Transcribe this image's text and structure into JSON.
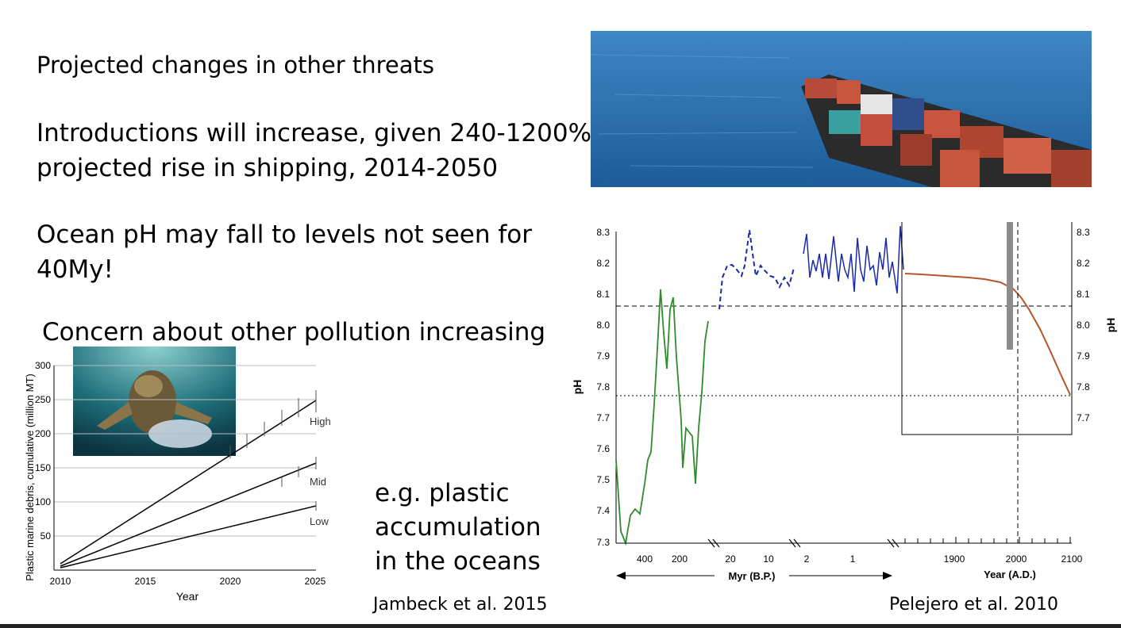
{
  "slide": {
    "title": "Projected changes in other threats",
    "para1": [
      "Introductions will increase, given 240-1200%",
      "projected rise in shipping, 2014-2050"
    ],
    "para2": [
      "Ocean pH may fall to levels not seen for",
      "40My!"
    ],
    "para3": "Concern about other pollution increasing",
    "example": [
      "e.g. plastic",
      "accumulation",
      "in the oceans"
    ],
    "cite_left": "Jambeck et al. 2015",
    "cite_right": "Pelejero et al. 2010"
  },
  "plastic_chart": {
    "ylabel": "Plastic marine debris, cumulative (million MT)",
    "xlabel": "Year",
    "yticks": [
      "300",
      "250",
      "200",
      "150",
      "100",
      "50"
    ],
    "xticks": [
      "2010",
      "2015",
      "2020",
      "2025"
    ],
    "labels": {
      "high": "High",
      "mid": "Mid",
      "low": "Low"
    }
  },
  "ph_chart": {
    "ylabel_left": "pH",
    "ylabel_right": "pH",
    "yticks": [
      "8.3",
      "8.2",
      "8.1",
      "8.0",
      "7.9",
      "7.8",
      "7.7",
      "7.6",
      "7.5",
      "7.4",
      "7.3"
    ],
    "yticks_right": [
      "8.3",
      "8.2",
      "8.1",
      "8.0",
      "7.9",
      "7.8",
      "7.7"
    ],
    "xticks_myr_a": [
      "400",
      "200"
    ],
    "xticks_myr_b": [
      "20",
      "10"
    ],
    "xticks_myr_c": [
      "2",
      "1"
    ],
    "xticks_year": [
      "1900",
      "2000",
      "2100"
    ],
    "xlabel_myr": "Myr (B.P.)",
    "xlabel_year": "Year (A.D.)"
  },
  "colors": {
    "ph_green": "#2e8b2e",
    "ph_blue": "#1a2aa8",
    "ph_orange": "#b5532b",
    "ocean": "#2a6fb0"
  }
}
